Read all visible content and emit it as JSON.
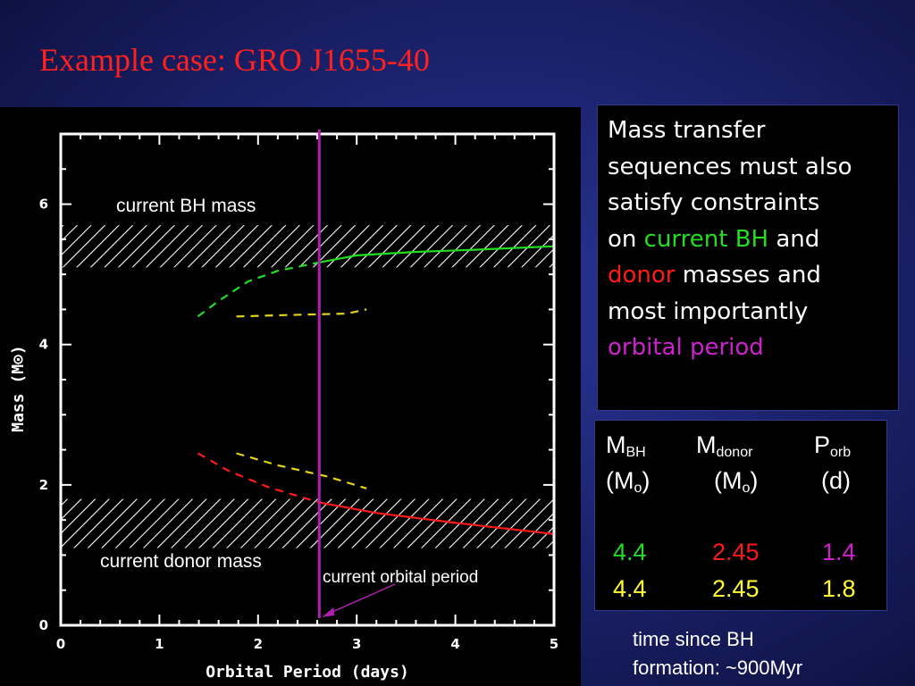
{
  "slide": {
    "title": "Example case: GRO J1655-40",
    "text_box": {
      "line1": "Mass transfer",
      "line2": "sequences must also",
      "line3": "satisfy constraints",
      "line4_a": "on ",
      "line4_b": "current BH",
      "line4_c": " and",
      "line5_a": "donor",
      "line5_b": " masses and",
      "line6": "most importantly",
      "line7": "orbital period"
    },
    "table": {
      "headers": [
        {
          "main": "M",
          "sub": "BH"
        },
        {
          "main": "M",
          "sub": "donor"
        },
        {
          "main": "P",
          "sub": "orb"
        }
      ],
      "units": [
        {
          "open": "(M",
          "sub": "o",
          "close": ")"
        },
        {
          "open": "(M",
          "sub": "o",
          "close": ")"
        },
        {
          "open": "(d)",
          "sub": "",
          "close": ""
        }
      ],
      "rows": [
        [
          "4.4",
          "2.45",
          "1.4"
        ],
        [
          "4.4",
          "2.45",
          "1.8"
        ]
      ]
    },
    "note": {
      "line1": "time since BH",
      "line2": "formation: ~900Myr"
    }
  },
  "chart_data": {
    "type": "line",
    "xlabel": "Orbital Period (days)",
    "ylabel_main": "Mass (M",
    "ylabel_symbol": "⊙",
    "ylabel_close": ")",
    "xlim": [
      0,
      5
    ],
    "ylim": [
      0,
      7
    ],
    "xticks": [
      0,
      1,
      2,
      3,
      4,
      5
    ],
    "yticks": [
      0,
      2,
      4,
      6
    ],
    "grid": false,
    "bands": [
      {
        "name": "bh_band",
        "y0": 5.1,
        "y1": 5.7
      },
      {
        "name": "donor_band",
        "y0": 1.1,
        "y1": 1.8
      }
    ],
    "vline": {
      "x": 2.62,
      "color": "#b020b0"
    },
    "annotations": {
      "bh": "current BH mass",
      "donor": "current donor mass",
      "period": "current orbital period"
    },
    "series": [
      {
        "key": "bh_green",
        "color": "#22dd22",
        "dashed": [
          [
            1.39,
            4.4
          ],
          [
            1.6,
            4.62
          ],
          [
            1.9,
            4.9
          ],
          [
            2.2,
            5.05
          ],
          [
            2.62,
            5.17
          ]
        ],
        "solid": [
          [
            2.62,
            5.17
          ],
          [
            3.0,
            5.27
          ],
          [
            3.6,
            5.32
          ],
          [
            4.2,
            5.35
          ],
          [
            5.0,
            5.4
          ]
        ]
      },
      {
        "key": "bh_yellow",
        "color": "#e6d21e",
        "dashed": [
          [
            1.78,
            4.4
          ],
          [
            2.3,
            4.42
          ],
          [
            2.9,
            4.44
          ],
          [
            3.1,
            4.5
          ]
        ],
        "solid": []
      },
      {
        "key": "donor_red",
        "color": "#ff1a1a",
        "dashed": [
          [
            1.39,
            2.45
          ],
          [
            1.7,
            2.2
          ],
          [
            2.1,
            1.97
          ],
          [
            2.62,
            1.75
          ]
        ],
        "solid": [
          [
            2.62,
            1.75
          ],
          [
            3.2,
            1.6
          ],
          [
            4.0,
            1.46
          ],
          [
            5.0,
            1.3
          ]
        ]
      },
      {
        "key": "donor_yellow",
        "color": "#e6d21e",
        "dashed": [
          [
            1.78,
            2.45
          ],
          [
            2.2,
            2.28
          ],
          [
            2.7,
            2.12
          ],
          [
            3.1,
            1.95
          ]
        ],
        "solid": []
      }
    ],
    "colors": {
      "frame": "#ffffff",
      "hatch": "#ffffff",
      "arrow": "#b020b0"
    }
  }
}
